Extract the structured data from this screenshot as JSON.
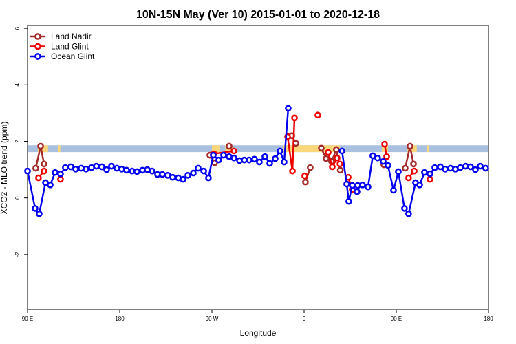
{
  "chart_data": {
    "type": "line",
    "title": "10N-15N May (Ver 10)   2015-01-01 to 2020-12-18",
    "x_label": "Longitude",
    "y_label": "XCO2 - MLO trend (ppm)",
    "xlim": [
      90,
      540
    ],
    "ylim": [
      -3.95,
      6.1
    ],
    "xticks": [
      {
        "value": 90,
        "label": "90 E"
      },
      {
        "value": 180,
        "label": "180"
      },
      {
        "value": 270,
        "label": "90 W"
      },
      {
        "value": 360,
        "label": "0"
      },
      {
        "value": 450,
        "label": "90 E"
      },
      {
        "value": 540,
        "label": "180"
      }
    ],
    "yticks": [
      -2,
      0,
      2,
      4,
      6
    ],
    "legend": "top-left",
    "band": {
      "ylim": [
        1.62,
        1.86
      ],
      "color": "#a9c0e0",
      "highlight_color": "#fbd77c",
      "highlights": [
        [
          100,
          110
        ],
        [
          120,
          122
        ],
        [
          270,
          278
        ],
        [
          283,
          290
        ],
        [
          340,
          395
        ],
        [
          436,
          442
        ],
        [
          461,
          470
        ],
        [
          480,
          482
        ]
      ]
    },
    "series": [
      {
        "name": "Land Nadir",
        "color": "#a52a2a",
        "x": [
          98,
          102.8,
          106.1,
          110,
          268,
          272.7,
          280,
          286.8,
          290,
          348,
          352,
          356,
          361.3,
          366,
          370,
          376.8,
          381.5,
          386.8,
          391.5,
          395.3,
          420,
          437.9,
          450,
          458.7,
          463.4,
          466.8
        ],
        "values": [
          1.05,
          1.83,
          1.2,
          null,
          1.51,
          1.24,
          null,
          1.83,
          null,
          2.2,
          1.93,
          null,
          0.56,
          1.07,
          null,
          1.76,
          1.39,
          1.29,
          1.71,
          0.98,
          null,
          1.17,
          null,
          1.05,
          1.83,
          1.2
        ]
      },
      {
        "name": "Land Glint",
        "color": "#ee0000",
        "x": [
          100.7,
          106.1,
          115,
          122.2,
          200,
          272,
          291.5,
          320,
          343.9,
          348.6,
          350.6,
          355,
          360.6,
          365,
          373.4,
          378,
          383.5,
          387.5,
          392.2,
          395,
          399,
          403,
          407,
          420,
          438.6,
          440.6,
          450,
          462,
          467.5,
          475,
          482.9
        ],
        "values": [
          0.71,
          0.95,
          null,
          0.66,
          null,
          1.56,
          1.66,
          null,
          2.17,
          0.95,
          2.83,
          null,
          0.78,
          null,
          2.93,
          null,
          1.61,
          1.1,
          1.41,
          1.2,
          null,
          0.73,
          0.3,
          null,
          1.9,
          1.46,
          null,
          0.71,
          0.95,
          null,
          0.66
        ]
      },
      {
        "name": "Ocean Glint",
        "color": "#0000ee",
        "x": [
          90,
          97.4,
          101.4,
          107.5,
          112.2,
          116.9,
          122.2,
          126.9,
          132.3,
          137,
          142.4,
          147.1,
          152.5,
          157.2,
          162.5,
          167.2,
          171.9,
          177.3,
          182,
          186.7,
          192.1,
          196.8,
          202.2,
          206.9,
          211.6,
          216.9,
          221.6,
          227,
          231.7,
          237.1,
          241.8,
          246.5,
          251.9,
          256.6,
          262,
          266.6,
          271.3,
          276.7,
          281.4,
          286.8,
          291.5,
          296.9,
          301.6,
          306.3,
          311.6,
          316.3,
          321.7,
          326.4,
          331.8,
          336.5,
          340.5,
          344.5,
          370,
          397,
          401.6,
          403.6,
          407,
          411.7,
          412.4,
          417,
          422.4,
          427.1,
          431.8,
          437.2,
          441.9,
          447.3,
          452,
          458,
          462,
          468.8,
          472.8,
          477.5,
          482.9,
          487.6,
          493,
          497.7,
          503,
          507.7,
          512.4,
          517.8,
          522.5,
          527.2,
          531.9,
          537.3
        ],
        "values": [
          0.95,
          -0.37,
          -0.56,
          0.54,
          0.46,
          0.9,
          0.85,
          1.07,
          1.1,
          1.02,
          1.05,
          1.02,
          1.07,
          1.12,
          1.1,
          1.0,
          1.12,
          1.05,
          1.02,
          0.98,
          0.95,
          0.93,
          0.98,
          1.0,
          0.95,
          0.83,
          0.83,
          0.8,
          0.73,
          0.71,
          0.66,
          0.8,
          0.88,
          1.05,
          0.95,
          0.71,
          1.51,
          1.34,
          1.51,
          1.46,
          1.41,
          1.32,
          1.34,
          1.34,
          1.37,
          1.27,
          1.46,
          1.22,
          1.39,
          1.66,
          1.27,
          3.17,
          null,
          1.66,
          0.49,
          -0.12,
          0.44,
          0.22,
          0.44,
          0.46,
          0.39,
          1.49,
          1.41,
          1.29,
          1.15,
          0.27,
          0.93,
          -0.37,
          -0.56,
          0.54,
          0.46,
          0.9,
          0.85,
          1.07,
          1.1,
          1.02,
          1.05,
          1.02,
          1.07,
          1.12,
          1.1,
          1.0,
          1.12,
          1.05
        ]
      }
    ]
  }
}
